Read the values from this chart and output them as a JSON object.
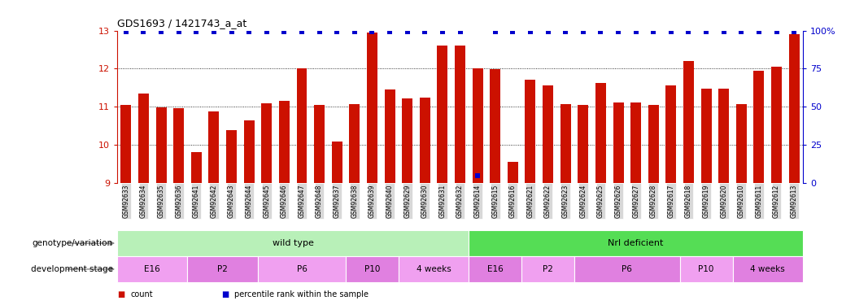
{
  "title": "GDS1693 / 1421743_a_at",
  "bar_color": "#cc1100",
  "percentile_color": "#0000cc",
  "ylim_left": [
    9,
    13
  ],
  "ylim_right": [
    0,
    100
  ],
  "yticks_left": [
    9,
    10,
    11,
    12,
    13
  ],
  "yticks_right": [
    0,
    25,
    50,
    75,
    100
  ],
  "samples": [
    "GSM92633",
    "GSM92634",
    "GSM92635",
    "GSM92636",
    "GSM92641",
    "GSM92642",
    "GSM92643",
    "GSM92644",
    "GSM92645",
    "GSM92646",
    "GSM92647",
    "GSM92648",
    "GSM92637",
    "GSM92638",
    "GSM92639",
    "GSM92640",
    "GSM92629",
    "GSM92630",
    "GSM92631",
    "GSM92632",
    "GSM92614",
    "GSM92615",
    "GSM92616",
    "GSM92621",
    "GSM92622",
    "GSM92623",
    "GSM92624",
    "GSM92625",
    "GSM92626",
    "GSM92627",
    "GSM92628",
    "GSM92617",
    "GSM92618",
    "GSM92619",
    "GSM92620",
    "GSM92610",
    "GSM92611",
    "GSM92612",
    "GSM92613"
  ],
  "bar_heights": [
    11.05,
    11.35,
    10.98,
    10.97,
    9.82,
    10.88,
    10.38,
    10.65,
    11.1,
    11.15,
    12.0,
    11.05,
    10.08,
    11.08,
    12.95,
    11.45,
    11.22,
    11.25,
    12.6,
    12.6,
    12.0,
    11.98,
    9.55,
    11.7,
    11.55,
    11.08,
    11.05,
    11.62,
    11.12,
    11.12,
    11.05,
    11.55,
    12.2,
    11.48,
    11.48,
    11.08,
    11.95,
    12.05,
    12.9
  ],
  "percentile_values": [
    99,
    99,
    99,
    99,
    99,
    99,
    99,
    99,
    99,
    99,
    99,
    99,
    99,
    99,
    99,
    99,
    99,
    99,
    99,
    99,
    5,
    99,
    99,
    99,
    99,
    99,
    99,
    99,
    99,
    99,
    99,
    99,
    99,
    99,
    99,
    99,
    99,
    99,
    99
  ],
  "genotype_groups": [
    {
      "label": "wild type",
      "start": 0,
      "end": 19,
      "color": "#b8f0b8"
    },
    {
      "label": "Nrl deficient",
      "start": 20,
      "end": 38,
      "color": "#55dd55"
    }
  ],
  "stage_groups": [
    {
      "label": "E16",
      "start": 0,
      "end": 3,
      "color": "#f0a0f0"
    },
    {
      "label": "P2",
      "start": 4,
      "end": 7,
      "color": "#e080e0"
    },
    {
      "label": "P6",
      "start": 8,
      "end": 12,
      "color": "#f0a0f0"
    },
    {
      "label": "P10",
      "start": 13,
      "end": 15,
      "color": "#e080e0"
    },
    {
      "label": "4 weeks",
      "start": 16,
      "end": 19,
      "color": "#f0a0f0"
    },
    {
      "label": "E16",
      "start": 20,
      "end": 22,
      "color": "#e080e0"
    },
    {
      "label": "P2",
      "start": 23,
      "end": 25,
      "color": "#f0a0f0"
    },
    {
      "label": "P6",
      "start": 26,
      "end": 31,
      "color": "#e080e0"
    },
    {
      "label": "P10",
      "start": 32,
      "end": 34,
      "color": "#f0a0f0"
    },
    {
      "label": "4 weeks",
      "start": 35,
      "end": 38,
      "color": "#e080e0"
    }
  ],
  "tick_bg_color": "#d8d8d8",
  "background_color": "#ffffff",
  "legend_items": [
    {
      "label": "count",
      "color": "#cc1100"
    },
    {
      "label": "percentile rank within the sample",
      "color": "#0000cc"
    }
  ]
}
